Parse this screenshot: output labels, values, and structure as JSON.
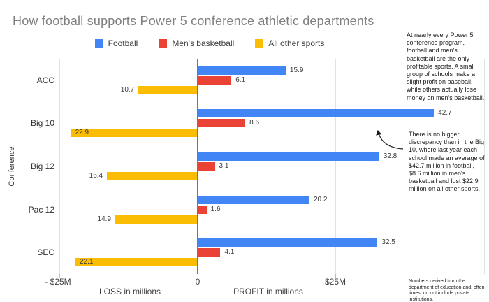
{
  "title": "How football supports Power 5 conference athletic departments",
  "legend": [
    {
      "label": "Football",
      "color": "#4285F4"
    },
    {
      "label": "Men's basketball",
      "color": "#EA4335"
    },
    {
      "label": "All other sports",
      "color": "#FBBC04"
    }
  ],
  "chart_data": {
    "type": "bar",
    "orientation": "horizontal",
    "title": "How football supports Power 5 conference athletic departments",
    "categories": [
      "ACC",
      "Big 10",
      "Big 12",
      "Pac 12",
      "SEC"
    ],
    "series": [
      {
        "name": "Football",
        "color": "#4285F4",
        "values": [
          15.9,
          42.7,
          32.8,
          20.2,
          32.5
        ]
      },
      {
        "name": "Men's basketball",
        "color": "#EA4335",
        "values": [
          6.1,
          8.6,
          3.1,
          1.6,
          4.1
        ]
      },
      {
        "name": "All other sports",
        "color": "#FBBC04",
        "values": [
          -10.7,
          -22.9,
          -16.4,
          -14.9,
          -22.1
        ]
      }
    ],
    "ylabel": "Conference",
    "xlabel_left": "LOSS in millions",
    "xlabel_right": "PROFIT in millions",
    "x_ticks": [
      "- $25M",
      "0",
      "$25M"
    ],
    "x_tick_values": [
      -25,
      0,
      25
    ],
    "xlim": [
      -25,
      52
    ],
    "grid": "vertical",
    "legend_position": "top",
    "value_labels": "absolute, one decimal"
  },
  "annotations": {
    "note1": "At nearly every Power 5 conference program, football and men's basketball are the only profitable sports. A small group of schools make a slight profit on baseball, while others actually lose money on men's basketball.",
    "note2": "There is no bigger discrepancy than in the Big 10, where last year each school made an average of $42.7 million in football, $8.6 million in men's basketball and lost $22.9 million on all other sports."
  },
  "footnote": "Numbers derived from the department of education and, often times, do not include private institutions."
}
